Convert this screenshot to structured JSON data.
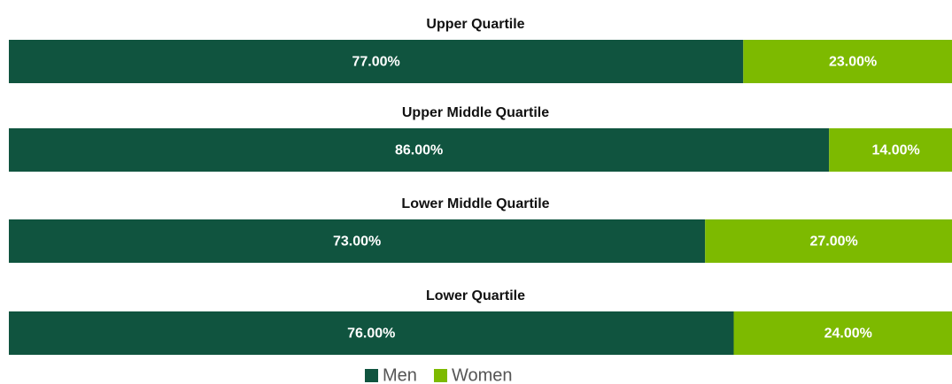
{
  "chart_data": {
    "type": "bar",
    "orientation": "horizontal",
    "stacked": true,
    "categories": [
      "Upper Quartile",
      "Upper Middle Quartile",
      "Lower Middle Quartile",
      "Lower Quartile"
    ],
    "series": [
      {
        "name": "Men",
        "color": "#10543f",
        "values": [
          77,
          86,
          73,
          76
        ],
        "value_labels": [
          "77.00%",
          "86.00%",
          "73.00%",
          "76.00%"
        ]
      },
      {
        "name": "Women",
        "color": "#7dba00",
        "values": [
          23,
          14,
          27,
          24
        ],
        "value_labels": [
          "23.00%",
          "14.00%",
          "27.00%",
          "24.00%"
        ]
      }
    ],
    "xlim": [
      0,
      100
    ],
    "legend": "bottom"
  }
}
